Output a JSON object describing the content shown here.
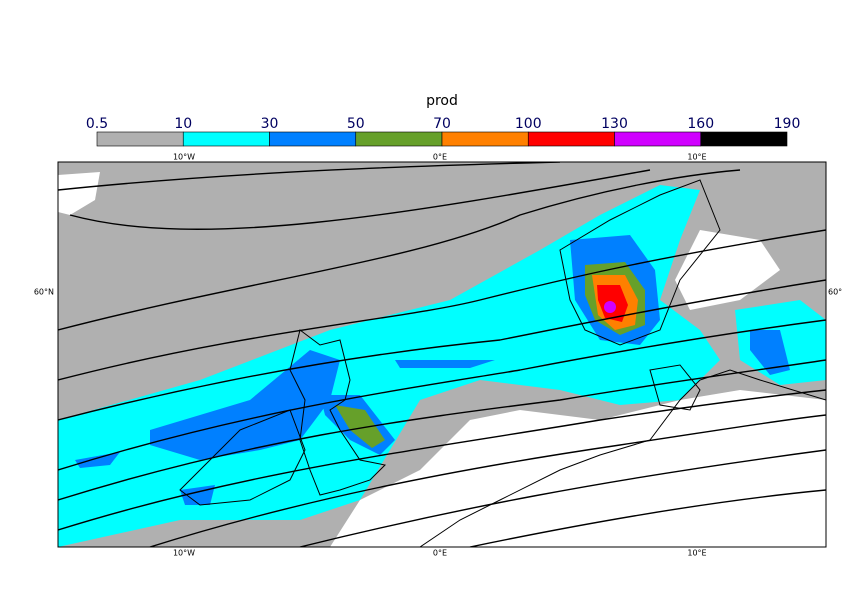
{
  "title": "prod",
  "colorbar": {
    "ticks": [
      0.5,
      10,
      30,
      50,
      70,
      100,
      130,
      160,
      190
    ],
    "colors": [
      "#b0b0b0",
      "#00ffff",
      "#0080ff",
      "#66a02a",
      "#ff8000",
      "#ff0000",
      "#d000ff",
      "#000000"
    ]
  },
  "lon_labels": [
    "10°W",
    "0°E",
    "10°E"
  ],
  "lat_labels": [
    "60°N"
  ]
}
